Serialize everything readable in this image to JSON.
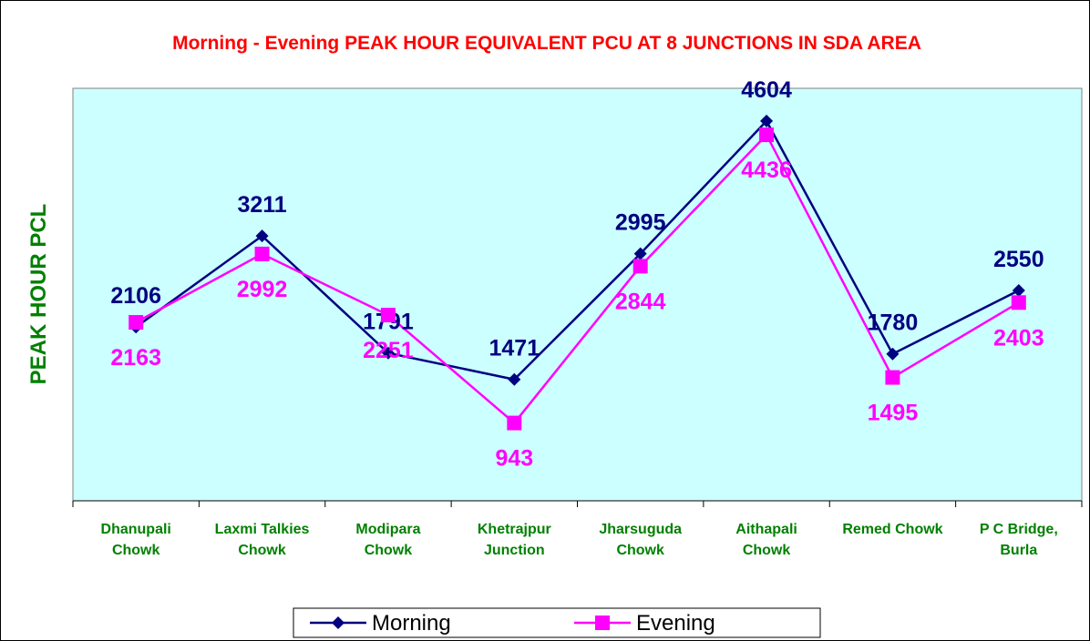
{
  "chart_data": {
    "type": "line",
    "title": "Morning - Evening PEAK HOUR EQUIVALENT PCU AT 8 JUNCTIONS IN SDA AREA",
    "y_label": "PEAK HOUR PCL",
    "categories": [
      "Dhanupali Chowk",
      "Laxmi Talkies Chowk",
      "Modipara Chowk",
      "Khetrajpur Junction",
      "Jharsuguda Chowk",
      "Aithapali Chowk",
      "Remed Chowk",
      "P C Bridge, Burla"
    ],
    "series": [
      {
        "name": "Morning",
        "color": "#000080",
        "marker": "diamond",
        "values": [
          2106,
          3211,
          1791,
          1471,
          2995,
          4604,
          1780,
          2550
        ]
      },
      {
        "name": "Evening",
        "color": "#ff00ff",
        "marker": "square",
        "values": [
          2163,
          2992,
          2251,
          943,
          2844,
          4436,
          1495,
          2403
        ]
      }
    ],
    "ylim": [
      0,
      5000
    ],
    "legend": "bottom"
  }
}
